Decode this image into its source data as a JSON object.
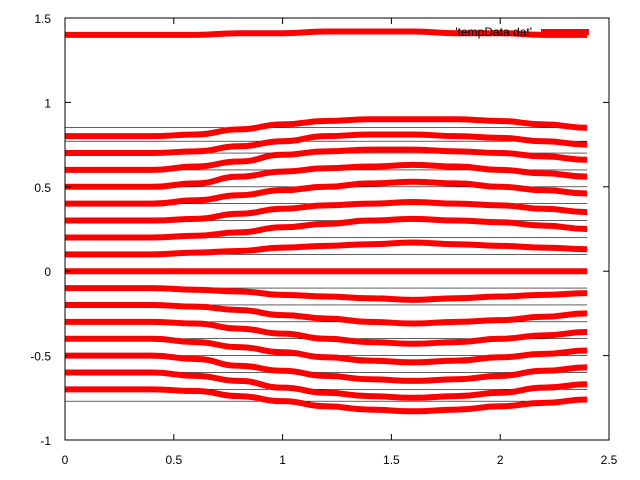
{
  "chart_data": {
    "type": "line",
    "title": "",
    "xlabel": "",
    "ylabel": "",
    "xlim": [
      0,
      2.5
    ],
    "ylim": [
      -1,
      1.5
    ],
    "x_ticks": [
      0,
      0.5,
      1,
      1.5,
      2,
      2.5
    ],
    "x_tick_labels": [
      "0",
      "0.5",
      "1",
      "1.5",
      "2",
      "2.5"
    ],
    "y_ticks": [
      -1,
      -0.5,
      0,
      0.5,
      1,
      1.5
    ],
    "y_tick_labels": [
      "-1",
      "-0.5",
      "0",
      "0.5",
      "1",
      "1.5"
    ],
    "grid": false,
    "legend": {
      "label": "'tempData.dat'",
      "placement": "top-right"
    },
    "series_color": "#ff0000",
    "reference_line_color": "#000000",
    "reference_lines": [
      -0.77,
      -0.7,
      -0.6,
      -0.5,
      -0.4,
      -0.3,
      -0.2,
      -0.1,
      0,
      0.1,
      0.2,
      0.3,
      0.4,
      0.5,
      0.6,
      0.7,
      0.77,
      0.85
    ],
    "x": [
      0,
      0.2,
      0.4,
      0.6,
      0.8,
      1.0,
      1.2,
      1.4,
      1.6,
      1.8,
      2.0,
      2.2,
      2.4
    ],
    "series": [
      {
        "values": [
          1.4,
          1.4,
          1.4,
          1.4,
          1.41,
          1.41,
          1.42,
          1.42,
          1.42,
          1.41,
          1.41,
          1.4,
          1.4
        ]
      },
      {
        "values": [
          0.8,
          0.8,
          0.8,
          0.81,
          0.84,
          0.87,
          0.89,
          0.9,
          0.9,
          0.9,
          0.89,
          0.87,
          0.85
        ]
      },
      {
        "values": [
          0.7,
          0.7,
          0.7,
          0.71,
          0.74,
          0.77,
          0.8,
          0.81,
          0.81,
          0.8,
          0.79,
          0.77,
          0.75
        ]
      },
      {
        "values": [
          0.6,
          0.6,
          0.6,
          0.62,
          0.65,
          0.69,
          0.71,
          0.72,
          0.72,
          0.71,
          0.7,
          0.68,
          0.66
        ]
      },
      {
        "values": [
          0.5,
          0.5,
          0.5,
          0.52,
          0.56,
          0.59,
          0.61,
          0.62,
          0.63,
          0.62,
          0.6,
          0.58,
          0.56
        ]
      },
      {
        "values": [
          0.4,
          0.4,
          0.4,
          0.42,
          0.45,
          0.48,
          0.5,
          0.52,
          0.53,
          0.52,
          0.5,
          0.48,
          0.46
        ]
      },
      {
        "values": [
          0.3,
          0.3,
          0.3,
          0.31,
          0.34,
          0.37,
          0.39,
          0.4,
          0.41,
          0.4,
          0.39,
          0.37,
          0.35
        ]
      },
      {
        "values": [
          0.2,
          0.2,
          0.2,
          0.21,
          0.23,
          0.26,
          0.28,
          0.3,
          0.31,
          0.3,
          0.29,
          0.27,
          0.25
        ]
      },
      {
        "values": [
          0.1,
          0.1,
          0.1,
          0.11,
          0.12,
          0.14,
          0.15,
          0.16,
          0.17,
          0.16,
          0.15,
          0.14,
          0.13
        ]
      },
      {
        "values": [
          0,
          0,
          0,
          0,
          0,
          0,
          0,
          0,
          0,
          0,
          0,
          0,
          0
        ]
      },
      {
        "values": [
          -0.1,
          -0.1,
          -0.1,
          -0.11,
          -0.12,
          -0.14,
          -0.15,
          -0.16,
          -0.17,
          -0.16,
          -0.15,
          -0.14,
          -0.13
        ]
      },
      {
        "values": [
          -0.2,
          -0.2,
          -0.2,
          -0.21,
          -0.23,
          -0.26,
          -0.28,
          -0.3,
          -0.31,
          -0.3,
          -0.29,
          -0.27,
          -0.25
        ]
      },
      {
        "values": [
          -0.3,
          -0.3,
          -0.3,
          -0.31,
          -0.34,
          -0.37,
          -0.4,
          -0.42,
          -0.43,
          -0.42,
          -0.4,
          -0.38,
          -0.36
        ]
      },
      {
        "values": [
          -0.4,
          -0.4,
          -0.4,
          -0.42,
          -0.45,
          -0.48,
          -0.51,
          -0.53,
          -0.54,
          -0.53,
          -0.51,
          -0.49,
          -0.47
        ]
      },
      {
        "values": [
          -0.5,
          -0.5,
          -0.5,
          -0.52,
          -0.56,
          -0.59,
          -0.62,
          -0.64,
          -0.65,
          -0.64,
          -0.62,
          -0.59,
          -0.57
        ]
      },
      {
        "values": [
          -0.6,
          -0.6,
          -0.6,
          -0.62,
          -0.65,
          -0.69,
          -0.72,
          -0.74,
          -0.75,
          -0.74,
          -0.72,
          -0.69,
          -0.67
        ]
      },
      {
        "values": [
          -0.7,
          -0.7,
          -0.7,
          -0.71,
          -0.74,
          -0.77,
          -0.8,
          -0.82,
          -0.83,
          -0.82,
          -0.8,
          -0.78,
          -0.76
        ]
      }
    ]
  }
}
